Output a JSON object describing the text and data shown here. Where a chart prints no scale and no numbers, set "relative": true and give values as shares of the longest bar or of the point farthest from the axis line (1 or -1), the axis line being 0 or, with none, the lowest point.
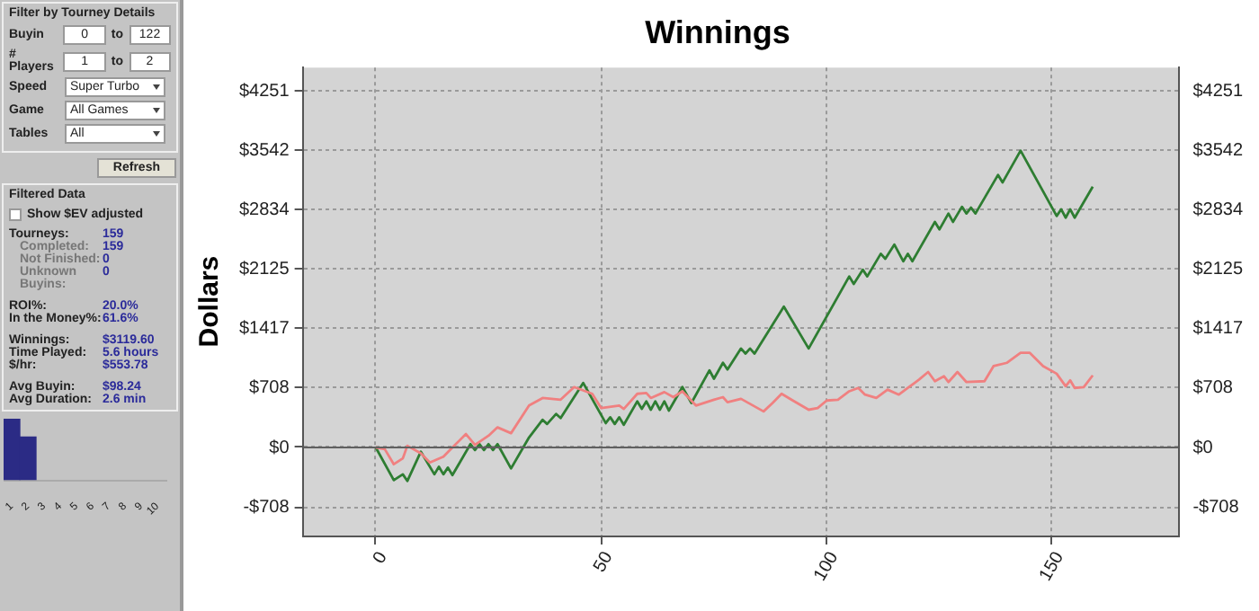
{
  "chart_data": [
    {
      "type": "other",
      "title": "Filter by Tourney Details",
      "annotations": [
        "Buyin",
        "0",
        "to",
        "122",
        "# Players",
        "1",
        "to",
        "2",
        "Speed",
        "Super Turbo",
        "Game",
        "All Games",
        "Tables",
        "All",
        "Refresh"
      ]
    },
    {
      "type": "other",
      "title": "Filtered Data",
      "annotations": [
        "Show $EV adjusted",
        "Tourneys:",
        "159",
        "Completed:",
        "159",
        "Not Finished:",
        "0",
        "Unknown Buyins:",
        "0",
        "ROI%:",
        "20.0%",
        "In the Money%:",
        "61.6%",
        "Winnings:",
        "$3119.60",
        "Time Played:",
        "5.6 hours",
        "$/hr:",
        "$553.78",
        "Avg Buyin:",
        "$98.24",
        "Avg Duration:",
        "2.6 min"
      ]
    },
    {
      "type": "bar",
      "relative": true,
      "categories": [
        "1",
        "2",
        "3",
        "4",
        "5",
        "6",
        "7",
        "8",
        "9",
        "10"
      ],
      "values": [
        1,
        0.7,
        null,
        null,
        null,
        null,
        null,
        null,
        null,
        null
      ],
      "color": "#2b2b85"
    },
    {
      "type": "line",
      "title": "Winnings",
      "ylabel": "Dollars",
      "marker": "none",
      "grid": true,
      "xlim": [
        -16,
        178
      ],
      "xticks": [
        0,
        50,
        100,
        150
      ],
      "ylim": [
        -1050,
        4530
      ],
      "yticks": [
        {
          "value": -708,
          "label": "-$708"
        },
        {
          "value": 0,
          "label": "$0"
        },
        {
          "value": 708,
          "label": "$708"
        },
        {
          "value": 1417,
          "label": "$1417"
        },
        {
          "value": 2125,
          "label": "$2125"
        },
        {
          "value": 2834,
          "label": "$2834"
        },
        {
          "value": 3542,
          "label": "$3542"
        },
        {
          "value": 4251,
          "label": "$4251"
        }
      ],
      "y2lim": [
        -1050,
        4530
      ],
      "y2ticks": [
        {
          "value": -708,
          "label": "-$708"
        },
        {
          "value": 0,
          "label": "$0"
        },
        {
          "value": 708,
          "label": "$708"
        },
        {
          "value": 1417,
          "label": "$1417"
        },
        {
          "value": 2125,
          "label": "$2125"
        },
        {
          "value": 2834,
          "label": "$2834"
        },
        {
          "value": 3542,
          "label": "$3542"
        },
        {
          "value": 4251,
          "label": "$4251"
        }
      ],
      "ref_lines": [
        {
          "axis": "y",
          "value": 0,
          "color": "#606060"
        }
      ],
      "series": [
        {
          "color": "#f08080",
          "x": [
            0,
            2,
            4,
            6,
            7,
            10,
            12,
            15,
            17,
            20,
            22,
            25,
            27,
            30,
            34,
            37,
            41,
            44,
            48,
            50,
            54,
            55,
            58,
            60,
            61,
            64,
            66,
            68,
            71,
            75,
            77,
            78,
            81,
            86,
            88,
            90,
            92.5,
            96,
            98,
            100,
            102.5,
            105,
            107,
            108.5,
            111,
            113.5,
            116,
            118,
            120.5,
            122.5,
            124,
            126,
            127,
            129,
            131,
            135,
            137,
            140,
            143,
            145,
            148,
            151,
            153,
            154,
            155,
            157,
            159
          ],
          "values": [
            0,
            -20,
            -200,
            -130,
            20,
            -70,
            -180,
            -110,
            0,
            160,
            30,
            140,
            240,
            170,
            500,
            590,
            570,
            720,
            640,
            470,
            500,
            460,
            640,
            650,
            590,
            660,
            600,
            670,
            500,
            570,
            600,
            540,
            580,
            430,
            530,
            640,
            560,
            450,
            470,
            560,
            570,
            670,
            710,
            630,
            590,
            690,
            630,
            710,
            810,
            900,
            790,
            850,
            780,
            900,
            780,
            790,
            970,
            1010,
            1130,
            1130,
            970,
            880,
            730,
            800,
            710,
            720,
            860
          ]
        },
        {
          "color": "#2e7d32",
          "x": [
            0,
            4,
            6,
            7,
            10,
            13,
            14,
            15,
            16,
            17,
            21,
            22,
            23,
            24,
            25,
            26,
            27,
            30,
            34,
            37,
            38,
            40,
            41,
            46,
            51,
            52,
            53,
            54,
            55,
            58,
            59,
            60,
            61,
            62,
            63,
            64,
            65,
            68,
            70,
            74,
            75,
            77,
            78,
            81,
            82,
            83,
            84,
            90.5,
            96,
            105,
            106,
            108,
            109,
            112,
            113,
            115,
            117,
            118,
            119,
            124,
            125,
            127,
            128,
            130,
            131,
            132,
            133,
            138,
            139,
            143,
            151,
            152,
            153,
            154,
            155,
            159
          ],
          "values": [
            0,
            -390,
            -320,
            -400,
            -50,
            -320,
            -230,
            -320,
            -240,
            -330,
            40,
            -30,
            40,
            -30,
            40,
            -30,
            40,
            -250,
            120,
            330,
            280,
            400,
            350,
            770,
            290,
            360,
            280,
            360,
            270,
            550,
            460,
            550,
            450,
            550,
            450,
            550,
            440,
            720,
            530,
            920,
            820,
            1010,
            930,
            1180,
            1120,
            1180,
            1120,
            1680,
            1180,
            2040,
            1950,
            2120,
            2040,
            2310,
            2250,
            2420,
            2220,
            2310,
            2220,
            2690,
            2600,
            2790,
            2690,
            2870,
            2790,
            2860,
            2790,
            3250,
            3160,
            3540,
            2760,
            2840,
            2740,
            2840,
            2740,
            3110
          ]
        }
      ]
    }
  ]
}
